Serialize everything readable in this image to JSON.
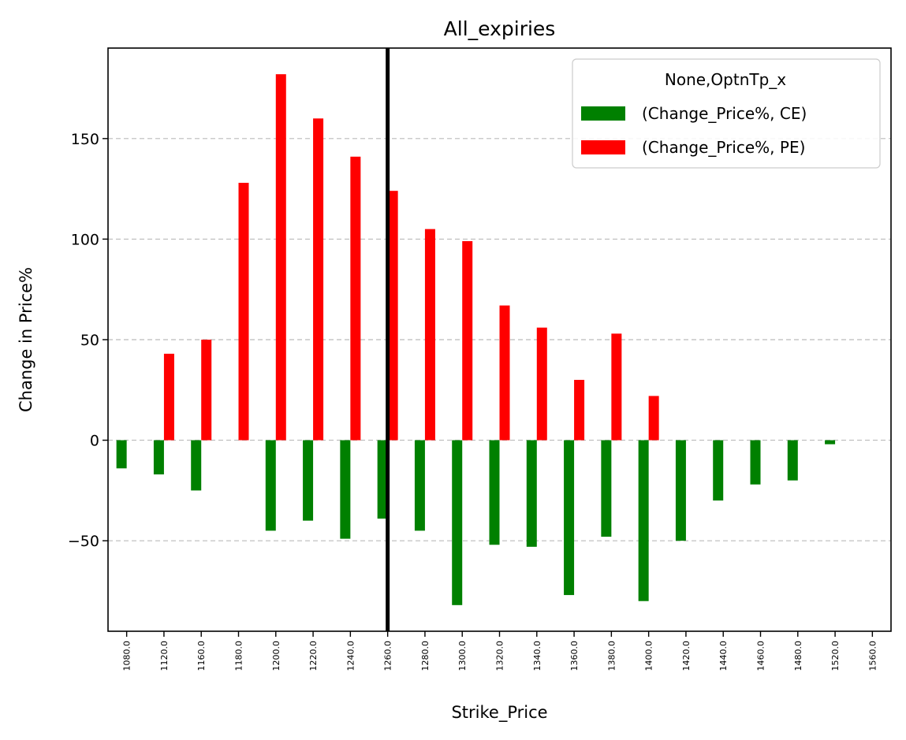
{
  "chart_data": {
    "type": "bar",
    "title": "All_expiries",
    "xlabel": "Strike_Price",
    "ylabel": "Change in Price%",
    "categories": [
      "1080.0",
      "1120.0",
      "1160.0",
      "1180.0",
      "1200.0",
      "1220.0",
      "1240.0",
      "1260.0",
      "1280.0",
      "1300.0",
      "1320.0",
      "1340.0",
      "1360.0",
      "1380.0",
      "1400.0",
      "1420.0",
      "1440.0",
      "1460.0",
      "1480.0",
      "1520.0",
      "1560.0"
    ],
    "series": [
      {
        "name": "(Change_Price%, CE)",
        "color": "#008000",
        "values": [
          -14,
          -17,
          -25,
          null,
          -45,
          -40,
          -49,
          -39,
          -45,
          -82,
          -52,
          -53,
          -77,
          -48,
          -80,
          -50,
          -30,
          -22,
          -20,
          -2,
          null
        ]
      },
      {
        "name": "(Change_Price%, PE)",
        "color": "#ff0000",
        "values": [
          null,
          43,
          50,
          128,
          182,
          160,
          141,
          124,
          105,
          99,
          67,
          56,
          30,
          53,
          22,
          null,
          null,
          null,
          null,
          null,
          null
        ]
      }
    ],
    "ylim": [
      -95,
      195
    ],
    "yticks": [
      -50,
      0,
      50,
      100,
      150
    ],
    "ytick_labels": [
      "−50",
      "0",
      "50",
      "100",
      "150"
    ],
    "grid": "y-dashed",
    "vline_category": "1260.0",
    "legend": {
      "title": "None,OptnTp_x",
      "placement": "top-right"
    }
  }
}
